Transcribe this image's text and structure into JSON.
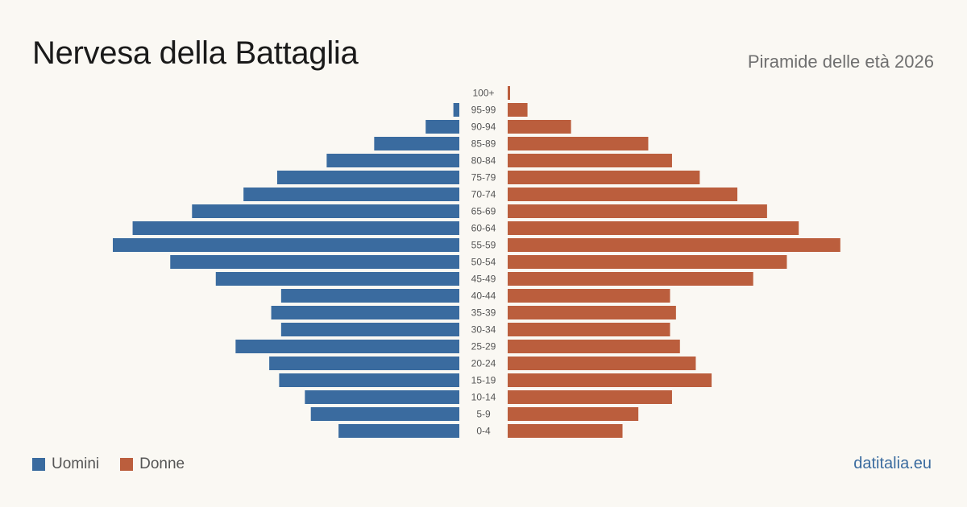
{
  "header": {
    "title": "Nervesa della Battaglia",
    "subtitle": "Piramide delle età 2026"
  },
  "legend": {
    "men_label": "Uomini",
    "women_label": "Donne"
  },
  "brand": "datitalia.eu",
  "colors": {
    "men": "#3a6b9f",
    "women": "#bb5e3d",
    "background": "#faf8f3"
  },
  "chart_data": {
    "type": "bar",
    "orientation": "horizontal-pyramid",
    "title": "Piramide delle età 2026",
    "categories": [
      "100+",
      "95-99",
      "90-94",
      "85-89",
      "80-84",
      "75-79",
      "70-74",
      "65-69",
      "60-64",
      "55-59",
      "50-54",
      "45-49",
      "40-44",
      "35-39",
      "30-34",
      "25-29",
      "20-24",
      "15-19",
      "10-14",
      "5-9",
      "0-4"
    ],
    "series": [
      {
        "name": "Uomini",
        "values": [
          0,
          3,
          17,
          43,
          67,
          92,
          109,
          135,
          165,
          175,
          146,
          123,
          90,
          95,
          90,
          113,
          96,
          91,
          78,
          75,
          61
        ]
      },
      {
        "name": "Donne",
        "values": [
          1,
          10,
          32,
          71,
          83,
          97,
          116,
          131,
          147,
          168,
          141,
          124,
          82,
          85,
          82,
          87,
          95,
          103,
          83,
          66,
          58
        ]
      }
    ],
    "grid": false,
    "legend_position": "bottom-left"
  }
}
